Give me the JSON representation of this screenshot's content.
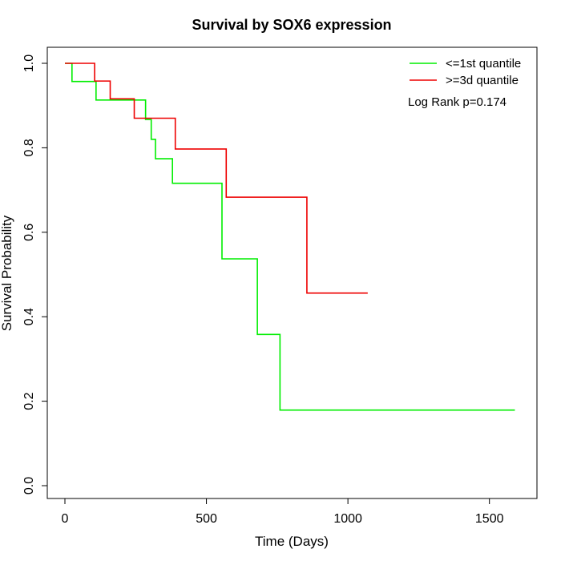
{
  "chart_data": {
    "type": "line",
    "step": true,
    "title": "Survival by SOX6 expression",
    "xlabel": "Time (Days)",
    "ylabel": "Survival Probability",
    "xlim": [
      0,
      1600
    ],
    "ylim": [
      0,
      1
    ],
    "xticks": [
      0,
      500,
      1000,
      1500
    ],
    "yticks": [
      0.0,
      0.2,
      0.4,
      0.6,
      0.8,
      1.0
    ],
    "xtick_labels": [
      "0",
      "500",
      "1000",
      "1500"
    ],
    "ytick_labels": [
      "0.0",
      "0.2",
      "0.4",
      "0.6",
      "0.8",
      "1.0"
    ],
    "grid": false,
    "legend_position": "top-right",
    "annotation": "Log Rank p=0.174",
    "series": [
      {
        "name": "<=1st quantile",
        "color": "#00ee00",
        "x": [
          0,
          25,
          110,
          285,
          305,
          320,
          380,
          555,
          680,
          760,
          1590
        ],
        "y": [
          1.0,
          0.957,
          0.913,
          0.867,
          0.82,
          0.774,
          0.716,
          0.537,
          0.358,
          0.179,
          0.179
        ]
      },
      {
        "name": ">=3d quantile",
        "color": "#ee0000",
        "x": [
          0,
          105,
          160,
          245,
          390,
          570,
          855,
          1070
        ],
        "y": [
          1.0,
          0.958,
          0.916,
          0.87,
          0.797,
          0.683,
          0.456,
          0.456
        ]
      }
    ]
  }
}
